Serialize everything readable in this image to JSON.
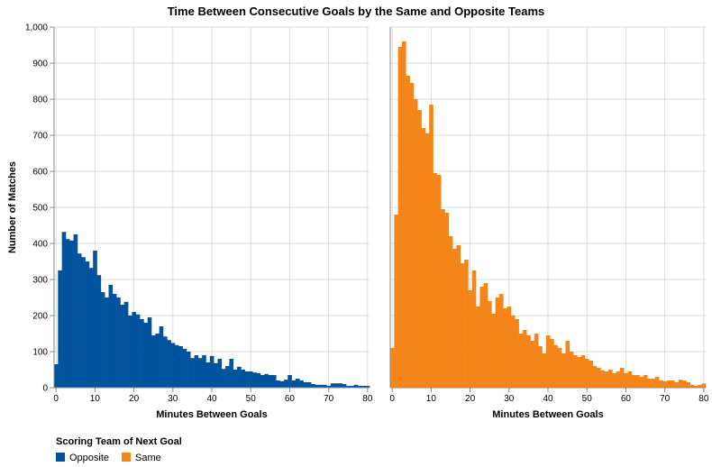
{
  "chart_data": {
    "type": "bar",
    "title": "Time Between Consecutive Goals by the Same and Opposite Teams",
    "ylabel": "Number of Matches",
    "ylim": [
      0,
      1000
    ],
    "yticks": [
      "0",
      "100",
      "200",
      "300",
      "400",
      "500",
      "600",
      "700",
      "800",
      "900",
      "1,000"
    ],
    "xticks": [
      "0",
      "10",
      "20",
      "30",
      "40",
      "50",
      "60",
      "70",
      "80"
    ],
    "grid": true,
    "legend": {
      "title": "Scoring Team of Next Goal",
      "placement": "bottom-left",
      "entries": [
        {
          "label": "Opposite",
          "color": "#00539c"
        },
        {
          "label": "Same",
          "color": "#f58518"
        }
      ]
    },
    "facets": [
      {
        "series_name": "Opposite",
        "color": "#00539c",
        "xlabel": "Minutes Between Goals",
        "xlim": [
          0,
          81
        ],
        "bin_start": 0,
        "bin_width": 1,
        "values": [
          65,
          325,
          432,
          412,
          408,
          425,
          372,
          362,
          350,
          332,
          380,
          312,
          265,
          250,
          285,
          260,
          250,
          230,
          238,
          200,
          210,
          203,
          190,
          180,
          195,
          145,
          150,
          170,
          142,
          132,
          124,
          118,
          115,
          108,
          100,
          82,
          90,
          82,
          90,
          70,
          88,
          68,
          80,
          52,
          60,
          80,
          50,
          58,
          50,
          45,
          45,
          42,
          40,
          35,
          38,
          35,
          35,
          20,
          18,
          22,
          35,
          20,
          25,
          20,
          15,
          15,
          10,
          8,
          8,
          8,
          5,
          12,
          12,
          12,
          10,
          5,
          5,
          8,
          5,
          5,
          5
        ]
      },
      {
        "series_name": "Same",
        "color": "#f58518",
        "xlabel": "Minutes Between Goals",
        "xlim": [
          0,
          81
        ],
        "bin_start": 0,
        "bin_width": 1,
        "values": [
          110,
          480,
          945,
          960,
          865,
          845,
          800,
          770,
          720,
          705,
          785,
          595,
          590,
          495,
          485,
          420,
          385,
          395,
          345,
          355,
          270,
          325,
          225,
          280,
          290,
          240,
          205,
          250,
          260,
          220,
          225,
          200,
          190,
          150,
          160,
          145,
          130,
          150,
          115,
          95,
          145,
          135,
          118,
          110,
          95,
          130,
          100,
          90,
          85,
          90,
          80,
          75,
          60,
          55,
          48,
          45,
          50,
          40,
          45,
          55,
          40,
          45,
          35,
          35,
          30,
          35,
          25,
          25,
          30,
          20,
          18,
          20,
          20,
          15,
          22,
          20,
          15,
          8,
          5,
          8,
          12
        ]
      }
    ]
  }
}
